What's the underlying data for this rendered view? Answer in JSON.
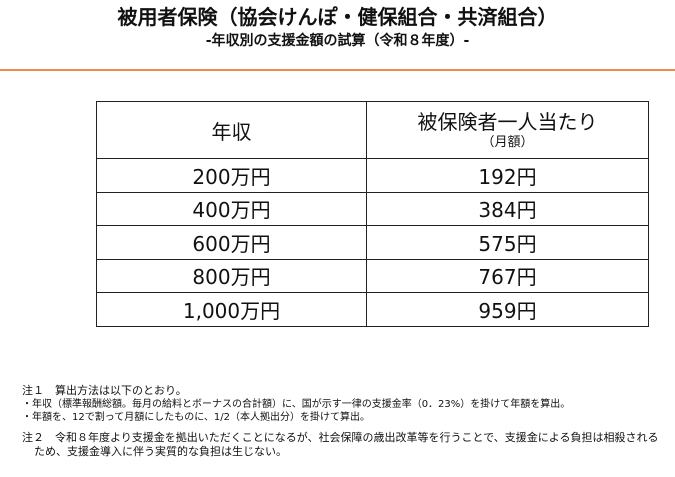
{
  "header": {
    "title": "被用者保険（協会けんぽ・健保組合・共済組合）",
    "subtitle": "-年収別の支援金額の試算（令和８年度）-"
  },
  "colors": {
    "rule": "#ee8a4f",
    "text": "#111111",
    "border": "#222222"
  },
  "table": {
    "header": {
      "col1": "年収",
      "col2": "被保険者一人当たり",
      "col2_sub": "（月額）"
    },
    "rows": [
      {
        "income": "200万円",
        "amount": "192円"
      },
      {
        "income": "400万円",
        "amount": "384円"
      },
      {
        "income": "600万円",
        "amount": "575円"
      },
      {
        "income": "800万円",
        "amount": "767円"
      },
      {
        "income": "1,000万円",
        "amount": "959円"
      }
    ]
  },
  "notes": {
    "note1_title": "注１　算出方法は以下のとおり。",
    "note1_bullet1": "・年収（標準報酬総額。毎月の給料とボーナスの合計額）に、国が示す一律の支援金率（0．23%）を掛けて年額を算出。",
    "note1_bullet2": "・年額を、12で割って月額にしたものに、1/2（本人拠出分）を掛けて算出。",
    "note2": "注２　令和８年度より支援金を拠出いただくことになるが、社会保障の歳出改革等を行うことで、支援金による負担は相殺されるため、支援金導入に伴う実質的な負担は生じない。"
  }
}
